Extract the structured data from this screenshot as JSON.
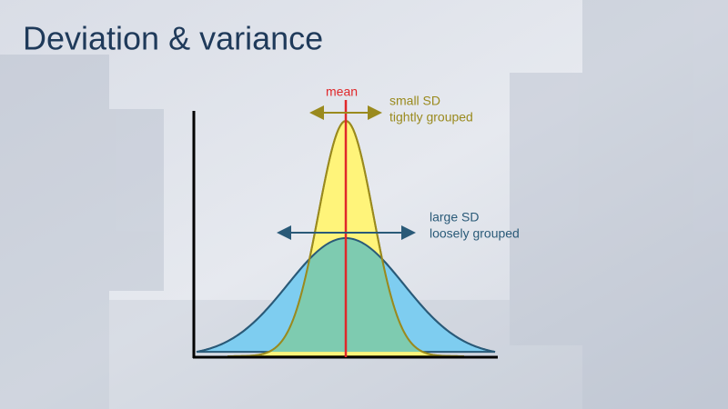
{
  "title": "Deviation & variance",
  "labels": {
    "mean": "mean",
    "small_sd": {
      "line1": "small SD",
      "line2": "tightly grouped"
    },
    "large_sd": {
      "line1": "large SD",
      "line2": "loosely grouped"
    }
  }
}
